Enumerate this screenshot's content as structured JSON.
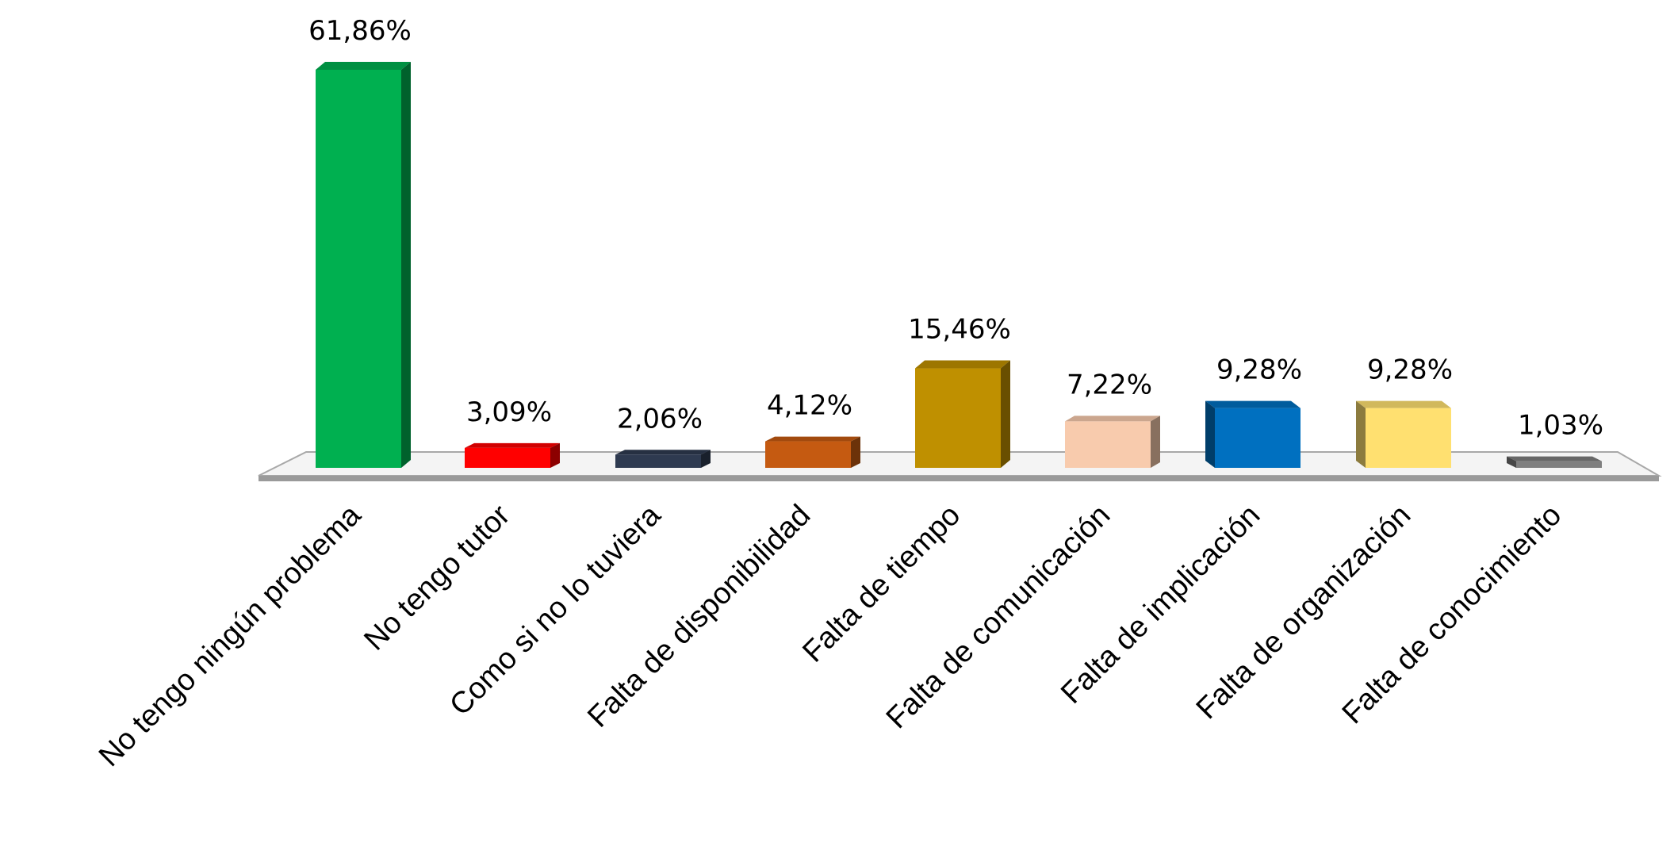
{
  "chart_data": {
    "type": "bar",
    "style": "3d",
    "title": "",
    "xlabel": "",
    "ylabel": "",
    "ylim": [
      0,
      62
    ],
    "grid": false,
    "legend": "none",
    "categories": [
      "No tengo ningún problema",
      "No tengo tutor",
      "Como si no lo tuviera",
      "Falta de disponibilidad",
      "Falta de tiempo",
      "Falta de comunicación",
      "Falta de implicación",
      "Falta de organización",
      "Falta de conocimiento"
    ],
    "values": [
      61.86,
      3.09,
      2.06,
      4.12,
      15.46,
      7.22,
      9.28,
      9.28,
      1.03
    ],
    "value_labels": [
      "61,86%",
      "3,09%",
      "2,06%",
      "4,12%",
      "15,46%",
      "7,22%",
      "9,28%",
      "9,28%",
      "1,03%"
    ],
    "colors": [
      "#00b050",
      "#ff0000",
      "#2e3a50",
      "#c55a11",
      "#bf9000",
      "#f8cbad",
      "#0070c0",
      "#ffe070",
      "#7f7f7f"
    ]
  }
}
